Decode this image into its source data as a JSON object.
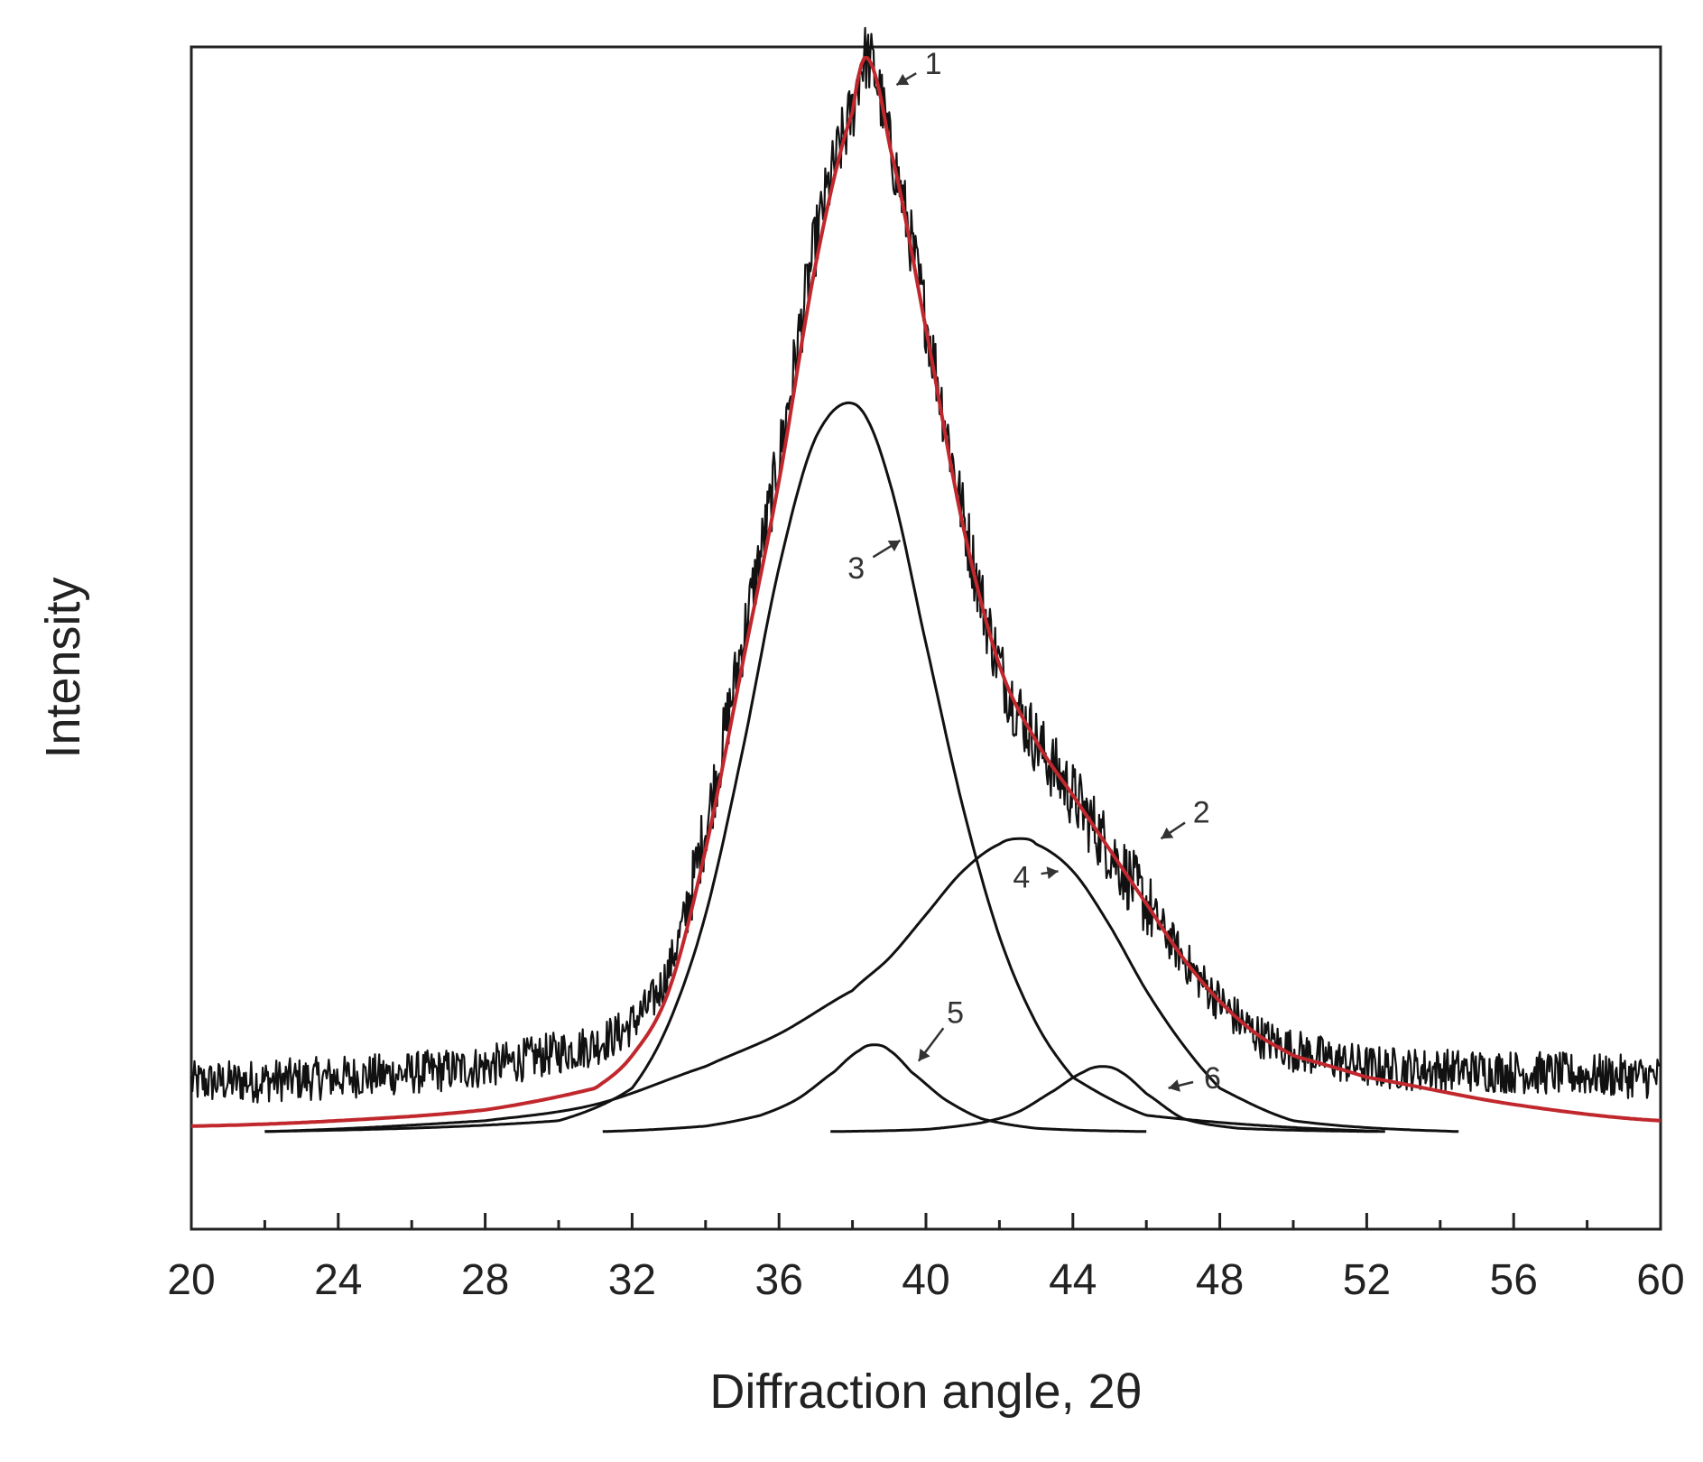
{
  "chart_data": {
    "type": "line",
    "title": "",
    "xlabel": "Diffraction angle, 2θ",
    "ylabel": "Intensity",
    "xlim": [
      20,
      60
    ],
    "ylim": [
      -0.09,
      1.0
    ],
    "x_ticks": [
      "20",
      "24",
      "28",
      "32",
      "36",
      "40",
      "44",
      "48",
      "52",
      "56",
      "60"
    ],
    "grid": false,
    "series": [
      {
        "name": "1",
        "role": "measured XRD pattern (noisy)",
        "color": "#111111",
        "x": [
          20,
          24,
          28,
          31,
          32,
          33,
          34,
          35,
          36,
          37,
          38,
          38.4,
          39,
          40,
          41,
          42,
          43,
          44,
          45,
          46,
          47,
          48,
          49,
          50,
          52,
          56,
          60
        ],
        "y": [
          0.045,
          0.05,
          0.06,
          0.08,
          0.1,
          0.15,
          0.28,
          0.45,
          0.62,
          0.82,
          0.94,
          0.99,
          0.91,
          0.75,
          0.57,
          0.43,
          0.36,
          0.31,
          0.26,
          0.21,
          0.16,
          0.12,
          0.09,
          0.075,
          0.06,
          0.055,
          0.05
        ],
        "noise": 0.02
      },
      {
        "name": "2",
        "role": "fitted envelope",
        "color": "#c0282d",
        "x": [
          20,
          24,
          28,
          31,
          32,
          33,
          34,
          35,
          36,
          37,
          38,
          38.4,
          39,
          40,
          41,
          42,
          43,
          44,
          45,
          46,
          47,
          48,
          49,
          50,
          52,
          56,
          60
        ],
        "y": [
          0.005,
          0.01,
          0.02,
          0.04,
          0.07,
          0.13,
          0.26,
          0.43,
          0.6,
          0.8,
          0.94,
          0.99,
          0.91,
          0.74,
          0.56,
          0.43,
          0.36,
          0.31,
          0.26,
          0.21,
          0.16,
          0.12,
          0.09,
          0.07,
          0.05,
          0.025,
          0.01
        ]
      },
      {
        "name": "3",
        "role": "fitted component",
        "color": "#111111",
        "x": [
          22,
          30,
          32,
          33,
          34,
          35,
          36,
          37,
          38.1,
          39,
          40,
          41,
          42,
          43,
          44,
          46,
          52.5
        ],
        "y": [
          0.0,
          0.01,
          0.04,
          0.1,
          0.2,
          0.35,
          0.52,
          0.64,
          0.67,
          0.6,
          0.45,
          0.3,
          0.18,
          0.1,
          0.05,
          0.015,
          0.0
        ]
      },
      {
        "name": "4",
        "role": "fitted component",
        "color": "#111111",
        "x": [
          22,
          28,
          31,
          34,
          36,
          38,
          39,
          40,
          41,
          42,
          42.6,
          43,
          44,
          45,
          46,
          47,
          48,
          50,
          54.5
        ],
        "y": [
          0.0,
          0.01,
          0.025,
          0.06,
          0.09,
          0.13,
          0.16,
          0.2,
          0.24,
          0.265,
          0.27,
          0.265,
          0.24,
          0.19,
          0.13,
          0.08,
          0.04,
          0.01,
          0.0
        ]
      },
      {
        "name": "5",
        "role": "fitted component",
        "color": "#111111",
        "x": [
          31.2,
          34,
          35.5,
          36.5,
          37.5,
          38.2,
          38.6,
          39,
          39.6,
          40.5,
          41.5,
          43,
          46
        ],
        "y": [
          0.0,
          0.005,
          0.015,
          0.03,
          0.055,
          0.075,
          0.08,
          0.075,
          0.055,
          0.03,
          0.012,
          0.003,
          0.0
        ]
      },
      {
        "name": "6",
        "role": "fitted component",
        "color": "#111111",
        "x": [
          37.4,
          40,
          41.5,
          42.5,
          43.5,
          44.3,
          44.8,
          45.3,
          46,
          47,
          48.5,
          52.3
        ],
        "y": [
          0.0,
          0.002,
          0.008,
          0.018,
          0.038,
          0.055,
          0.06,
          0.055,
          0.035,
          0.012,
          0.003,
          0.0
        ]
      }
    ],
    "annotations": [
      {
        "label": "1",
        "x": 40.2,
        "y": 0.975,
        "arrow_to": [
          39.2,
          0.965
        ]
      },
      {
        "label": "2",
        "x": 47.5,
        "y": 0.285,
        "arrow_to": [
          46.4,
          0.27
        ]
      },
      {
        "label": "3",
        "x": 38.1,
        "y": 0.51,
        "arrow_to": [
          39.3,
          0.545
        ]
      },
      {
        "label": "4",
        "x": 42.6,
        "y": 0.225,
        "arrow_to": [
          43.6,
          0.24
        ]
      },
      {
        "label": "5",
        "x": 40.8,
        "y": 0.1,
        "arrow_to": [
          39.8,
          0.065
        ]
      },
      {
        "label": "6",
        "x": 47.8,
        "y": 0.04,
        "arrow_to": [
          46.6,
          0.04
        ]
      }
    ]
  }
}
